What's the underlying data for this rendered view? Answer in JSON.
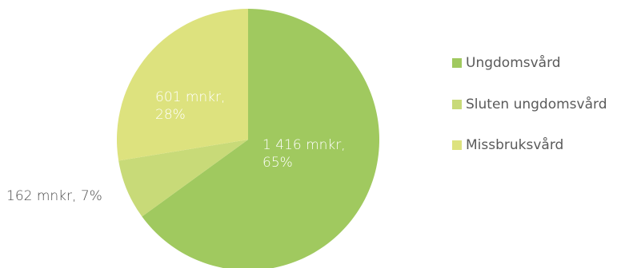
{
  "chart_data": {
    "type": "pie",
    "series": [
      {
        "name": "Ungdomsvård",
        "value": 1416,
        "percent": 65,
        "label_lines": [
          "1 416 mnkr,",
          "65%"
        ],
        "color": "#a0c95f",
        "label_color": "#ffffff",
        "label_inside": true
      },
      {
        "name": "Sluten ungdomsvård",
        "value": 162,
        "percent": 7,
        "label_lines": [
          "162 mnkr, 7%"
        ],
        "color": "#c8da78",
        "label_color": "#4a4a4a",
        "label_inside": false
      },
      {
        "name": "Missbruksvård",
        "value": 601,
        "percent": 28,
        "label_lines": [
          "601 mnkr,",
          "28%"
        ],
        "color": "#dde27e",
        "label_color": "#ffffff",
        "label_inside": true
      }
    ],
    "legend_position": "right"
  }
}
